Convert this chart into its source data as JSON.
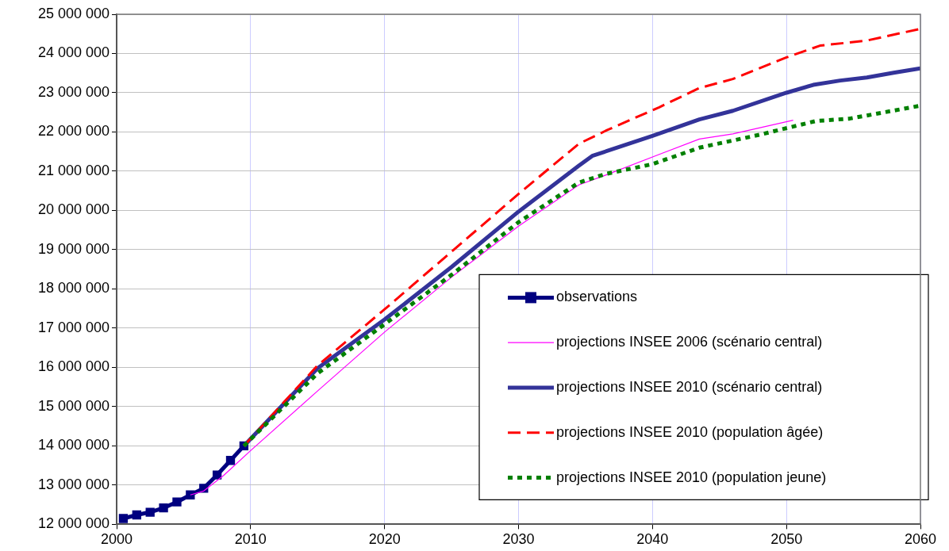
{
  "chart_data": {
    "type": "line",
    "xlim": [
      2000,
      2060
    ],
    "xticks": [
      2000,
      2010,
      2020,
      2030,
      2040,
      2050,
      2060
    ],
    "ylim": [
      12000000,
      25000000
    ],
    "yticks": [
      {
        "value": 12000000,
        "label": "12 000 000"
      },
      {
        "value": 13000000,
        "label": "13 000 000"
      },
      {
        "value": 14000000,
        "label": "14 000 000"
      },
      {
        "value": 15000000,
        "label": "15 000 000"
      },
      {
        "value": 16000000,
        "label": "16 000 000"
      },
      {
        "value": 17000000,
        "label": "17 000 000"
      },
      {
        "value": 18000000,
        "label": "18 000 000"
      },
      {
        "value": 19000000,
        "label": "19 000 000"
      },
      {
        "value": 20000000,
        "label": "20 000 000"
      },
      {
        "value": 21000000,
        "label": "21 000 000"
      },
      {
        "value": 22000000,
        "label": "22 000 000"
      },
      {
        "value": 23000000,
        "label": "23 000 000"
      },
      {
        "value": 24000000,
        "label": "24 000 000"
      },
      {
        "value": 25000000,
        "label": "25 000 000"
      }
    ],
    "grid": true,
    "legend": "bottom right",
    "series": [
      {
        "name": "observations",
        "color": "#000080",
        "marker": "square",
        "line_style": "solid",
        "x": [
          2000.5,
          2001.5,
          2002.5,
          2003.5,
          2004.5,
          2005.5,
          2006.5,
          2007.5,
          2008.5,
          2009.5
        ],
        "values": [
          12150000,
          12240000,
          12310000,
          12420000,
          12570000,
          12750000,
          12920000,
          13260000,
          13630000,
          14000000
        ]
      },
      {
        "name": "projections INSEE 2006 (scénario central)",
        "color": "#ff00ff",
        "marker": "none",
        "line_style": "solid",
        "x": [
          2005.5,
          2006.5,
          2008,
          2010,
          2015,
          2020,
          2025,
          2030,
          2034.5,
          2036.5,
          2040.5,
          2043.5,
          2046,
          2050.5
        ],
        "values": [
          12750000,
          12850000,
          13250000,
          13880000,
          15400000,
          16900000,
          18300000,
          19600000,
          20650000,
          20900000,
          21430000,
          21820000,
          21950000,
          22300000
        ]
      },
      {
        "name": "projections INSEE 2010 (scénario central)",
        "color": "#333399",
        "marker": "none",
        "line_style": "solid",
        "x": [
          2009.5,
          2013,
          2015,
          2020,
          2025,
          2030,
          2034.5,
          2035.5,
          2040,
          2043.5,
          2046,
          2050,
          2052,
          2054,
          2056,
          2058,
          2060
        ],
        "values": [
          14000000,
          15260000,
          15980000,
          17220000,
          18560000,
          19970000,
          21140000,
          21390000,
          21900000,
          22320000,
          22540000,
          23000000,
          23200000,
          23310000,
          23390000,
          23510000,
          23620000
        ]
      },
      {
        "name": "projections INSEE 2010 (population âgée)",
        "color": "#ff0000",
        "marker": "none",
        "line_style": "dashed",
        "x": [
          2009.5,
          2015,
          2020,
          2025,
          2030,
          2034.5,
          2036.5,
          2040.5,
          2043.5,
          2046,
          2050,
          2052.5,
          2056,
          2060
        ],
        "values": [
          14000000,
          16050000,
          17480000,
          18950000,
          20420000,
          21700000,
          22030000,
          22630000,
          23120000,
          23350000,
          23900000,
          24200000,
          24330000,
          24630000
        ]
      },
      {
        "name": "projections INSEE 2010 (population jeune)",
        "color": "#008000",
        "marker": "none",
        "line_style": "dotted",
        "x": [
          2009.5,
          2015,
          2020,
          2025,
          2030,
          2034.5,
          2036.5,
          2040,
          2043.5,
          2048,
          2052.2,
          2054.7,
          2060
        ],
        "values": [
          14000000,
          15850000,
          17100000,
          18360000,
          19700000,
          20710000,
          20930000,
          21180000,
          21600000,
          21930000,
          22280000,
          22340000,
          22670000
        ]
      }
    ]
  }
}
